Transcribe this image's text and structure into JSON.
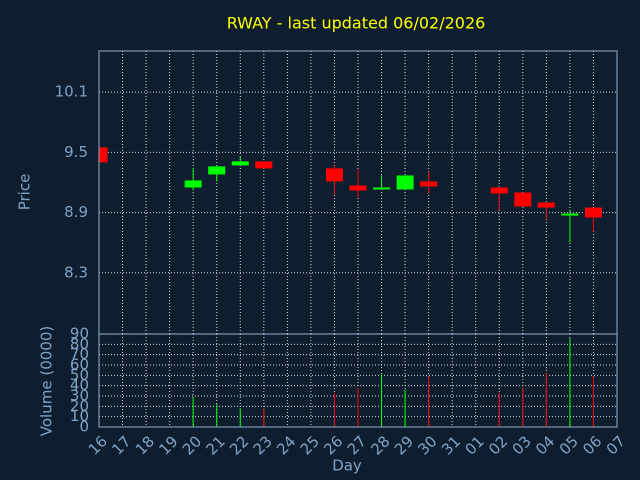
{
  "chart_data": [
    {
      "type": "candlestick",
      "title": "RWAY - last updated 06/02/2026",
      "ylabel": "Price",
      "open": [
        9.55,
        null,
        null,
        null,
        9.15,
        9.28,
        9.37,
        9.41,
        null,
        null,
        9.34,
        9.17,
        9.13,
        9.13,
        9.21,
        null,
        null,
        9.15,
        9.1,
        9.0,
        8.87,
        8.95,
        null
      ],
      "high": [
        9.55,
        null,
        null,
        null,
        9.34,
        9.37,
        9.46,
        9.41,
        null,
        null,
        9.37,
        9.33,
        9.27,
        9.27,
        9.31,
        null,
        null,
        9.15,
        9.1,
        9.0,
        8.92,
        8.95,
        null
      ],
      "low": [
        9.4,
        null,
        null,
        null,
        9.12,
        9.21,
        9.37,
        9.34,
        null,
        null,
        9.08,
        9.05,
        9.13,
        9.13,
        9.09,
        null,
        null,
        8.92,
        8.96,
        8.83,
        8.6,
        8.71,
        null
      ],
      "close": [
        9.4,
        null,
        null,
        null,
        9.22,
        9.36,
        9.41,
        9.34,
        null,
        null,
        9.21,
        9.12,
        9.15,
        9.27,
        9.16,
        null,
        null,
        9.09,
        8.96,
        8.95,
        8.89,
        8.85,
        null
      ],
      "up_color": "#00ff00",
      "down_color": "#ff0000",
      "ylim": [
        7.69,
        10.51
      ],
      "yticks": [
        8.3,
        8.9,
        9.5,
        10.1
      ],
      "grid": true
    },
    {
      "type": "bar",
      "ylabel": "Volume (0000)",
      "xlabel": "Day",
      "categories": [
        "16",
        "17",
        "18",
        "19",
        "20",
        "21",
        "22",
        "23",
        "24",
        "25",
        "26",
        "27",
        "28",
        "29",
        "30",
        "31",
        "01",
        "02",
        "03",
        "04",
        "05",
        "06",
        "07"
      ],
      "values": [
        null,
        null,
        null,
        null,
        29,
        22,
        18,
        17,
        null,
        null,
        33,
        38,
        51,
        36,
        49,
        null,
        null,
        33,
        38,
        52,
        86,
        49,
        null
      ],
      "ylim": [
        0,
        90
      ],
      "yticks": [
        0,
        10,
        20,
        30,
        40,
        50,
        60,
        70,
        80,
        90
      ],
      "grid": true
    }
  ]
}
